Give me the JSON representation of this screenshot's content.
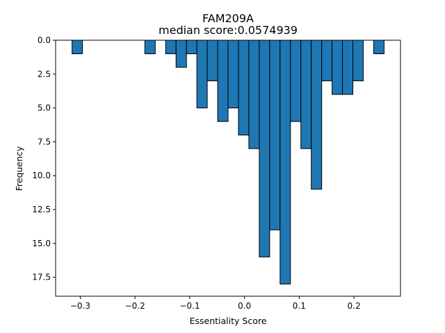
{
  "chart_data": {
    "type": "bar",
    "title": "FAM209A",
    "subtitle": "median score:0.0574939",
    "xlabel": "Essentiality Score",
    "ylabel": "Frequency",
    "bar_color": "#1f77b4",
    "edge_color": "#000000",
    "y_inverted": true,
    "xlim": [
      -0.345,
      0.285
    ],
    "ylim": [
      0,
      18.9
    ],
    "x_ticks": [
      -0.3,
      -0.2,
      -0.1,
      0.0,
      0.1,
      0.2
    ],
    "x_tick_labels": [
      "−0.3",
      "−0.2",
      "−0.1",
      "0.0",
      "0.1",
      "0.2"
    ],
    "y_ticks": [
      0,
      2.5,
      5,
      7.5,
      10,
      12.5,
      15,
      17.5
    ],
    "y_tick_labels": [
      "0.0",
      "2.5",
      "5.0",
      "7.5",
      "10.0",
      "12.5",
      "15.0",
      "17.5"
    ],
    "bin_width": 0.019,
    "bins": [
      {
        "x0": -0.315,
        "count": 1
      },
      {
        "x0": -0.182,
        "count": 1
      },
      {
        "x0": -0.144,
        "count": 1
      },
      {
        "x0": -0.125,
        "count": 2
      },
      {
        "x0": -0.106,
        "count": 1
      },
      {
        "x0": -0.087,
        "count": 5
      },
      {
        "x0": -0.068,
        "count": 3
      },
      {
        "x0": -0.049,
        "count": 6
      },
      {
        "x0": -0.03,
        "count": 5
      },
      {
        "x0": -0.011,
        "count": 7
      },
      {
        "x0": 0.008,
        "count": 8
      },
      {
        "x0": 0.027,
        "count": 16
      },
      {
        "x0": 0.046,
        "count": 14
      },
      {
        "x0": 0.065,
        "count": 18
      },
      {
        "x0": 0.084,
        "count": 6
      },
      {
        "x0": 0.103,
        "count": 8
      },
      {
        "x0": 0.122,
        "count": 11
      },
      {
        "x0": 0.141,
        "count": 3
      },
      {
        "x0": 0.16,
        "count": 4
      },
      {
        "x0": 0.179,
        "count": 4
      },
      {
        "x0": 0.198,
        "count": 3
      },
      {
        "x0": 0.236,
        "count": 1
      }
    ]
  }
}
